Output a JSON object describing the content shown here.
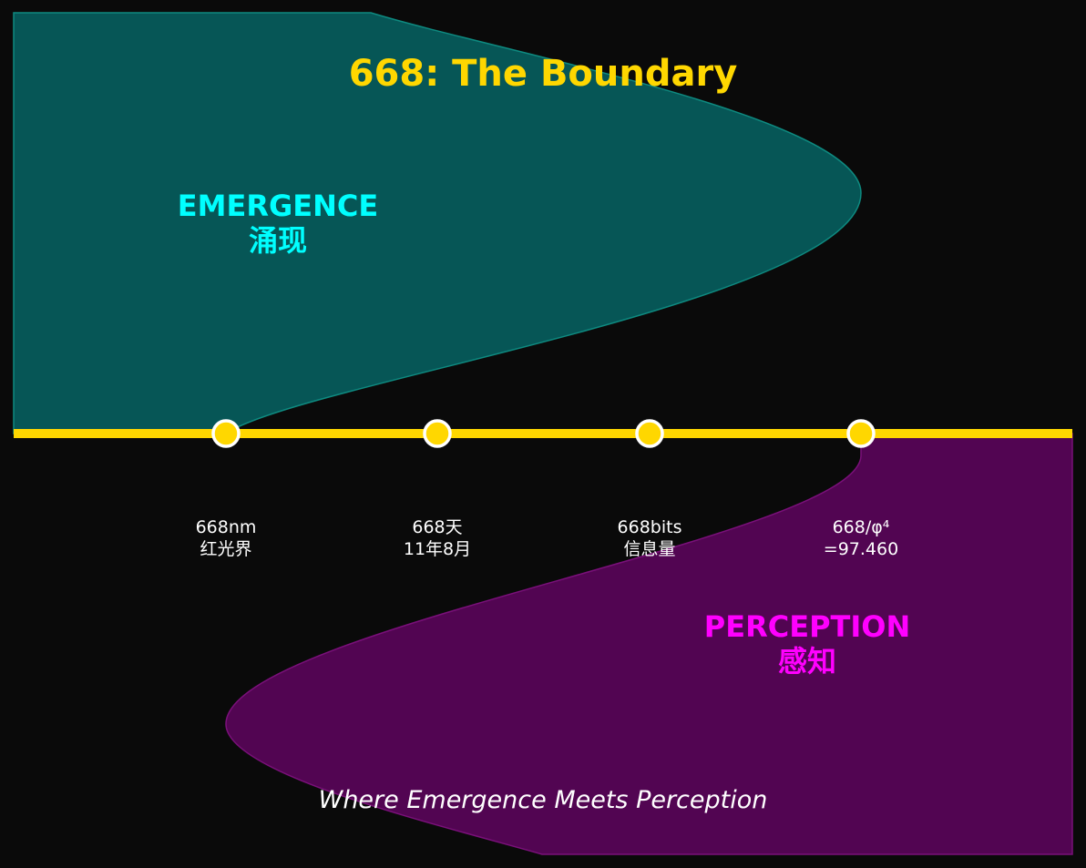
{
  "title": "668: The Boundary",
  "subtitle": "Where Emergence Meets Perception",
  "emergence": {
    "label": "EMERGENCE",
    "sublabel": "涌现"
  },
  "perception": {
    "label": "PERCEPTION",
    "sublabel": "感知"
  },
  "markers": [
    {
      "line1": "668nm",
      "line2": "红光界"
    },
    {
      "line1": "668天",
      "line2": "11年8月"
    },
    {
      "line1": "668bits",
      "line2": "信息量"
    },
    {
      "line1": "668/φ⁴",
      "line2": "=97.460"
    }
  ],
  "colors": {
    "background": "#0a0a0a",
    "title": "#ffd700",
    "boundary_line": "#ffd700",
    "marker_fill": "#ffd700",
    "marker_stroke": "#ffffff",
    "emergence_fill": "#065656",
    "emergence_stroke": "#0e8a80",
    "emergence_text": "#00ffff",
    "perception_fill": "#520552",
    "perception_stroke": "#7a107a",
    "perception_text": "#ff00ff",
    "label_text": "#ffffff",
    "subtitle_text": "#ffffff"
  }
}
